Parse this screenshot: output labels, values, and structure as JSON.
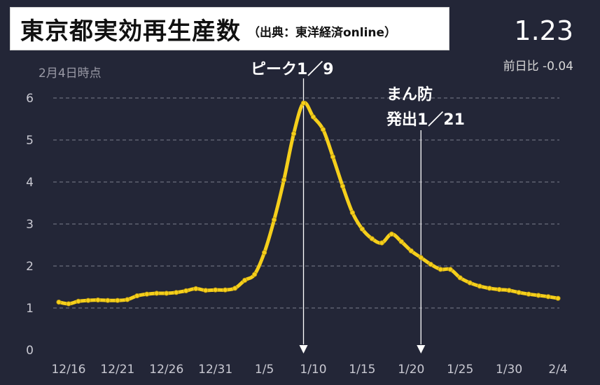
{
  "header": {
    "title": "東京都実効再生産数",
    "source_note": "（出典：東洋経済online）",
    "current_value": "1.23",
    "change_label": "前日比 -0.04",
    "as_of": "2月4日時点"
  },
  "annotations": {
    "peak_label": "ピーク1／9",
    "emergency_line1": "まん防",
    "emergency_line2": "発出1／21"
  },
  "colors": {
    "background": "#232637",
    "line": "#f5cf1b",
    "grid": "#6b6e7d",
    "axis_text": "#c9c9d2"
  },
  "chart_data": {
    "type": "line",
    "title": "東京都実効再生産数",
    "xlabel": "",
    "ylabel": "",
    "ylim": [
      0,
      6
    ],
    "yticks": [
      0,
      1,
      2,
      3,
      4,
      5,
      6
    ],
    "xtick_labels": [
      "12/16",
      "12/21",
      "12/26",
      "12/31",
      "1/5",
      "1/10",
      "1/15",
      "1/20",
      "1/25",
      "1/30",
      "2/4"
    ],
    "x": [
      "12/15",
      "12/16",
      "12/17",
      "12/18",
      "12/19",
      "12/20",
      "12/21",
      "12/22",
      "12/23",
      "12/24",
      "12/25",
      "12/26",
      "12/27",
      "12/28",
      "12/29",
      "12/30",
      "12/31",
      "1/1",
      "1/2",
      "1/3",
      "1/4",
      "1/5",
      "1/6",
      "1/7",
      "1/8",
      "1/9",
      "1/10",
      "1/11",
      "1/12",
      "1/13",
      "1/14",
      "1/15",
      "1/16",
      "1/17",
      "1/18",
      "1/19",
      "1/20",
      "1/21",
      "1/22",
      "1/23",
      "1/24",
      "1/25",
      "1/26",
      "1/27",
      "1/28",
      "1/29",
      "1/30",
      "1/31",
      "2/1",
      "2/2",
      "2/3",
      "2/4"
    ],
    "series": [
      {
        "name": "",
        "values": [
          1.14,
          1.1,
          1.16,
          1.18,
          1.19,
          1.18,
          1.18,
          1.2,
          1.29,
          1.33,
          1.35,
          1.35,
          1.37,
          1.41,
          1.46,
          1.42,
          1.43,
          1.43,
          1.47,
          1.66,
          1.8,
          2.32,
          3.1,
          4.05,
          5.15,
          5.88,
          5.55,
          5.25,
          4.6,
          3.9,
          3.27,
          2.88,
          2.65,
          2.55,
          2.76,
          2.58,
          2.36,
          2.2,
          2.04,
          1.92,
          1.92,
          1.72,
          1.6,
          1.52,
          1.47,
          1.44,
          1.42,
          1.37,
          1.33,
          1.3,
          1.27,
          1.23
        ]
      }
    ],
    "markers": [
      {
        "x": "1/9",
        "label": "ピーク1／9"
      },
      {
        "x": "1/21",
        "label": "まん防 発出1／21"
      }
    ]
  }
}
